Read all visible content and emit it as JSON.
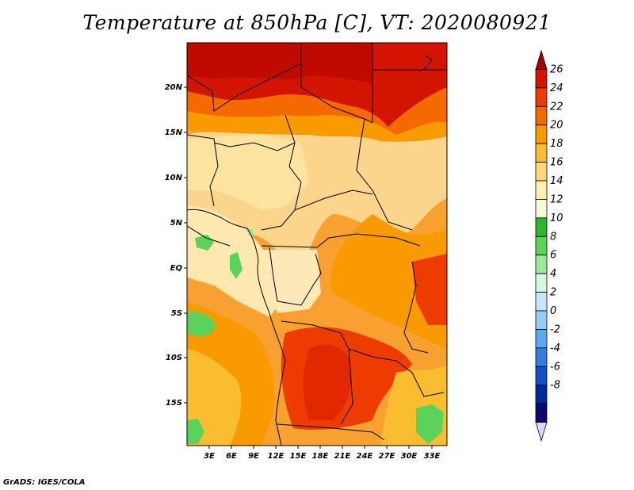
{
  "title": "Temperature at 850hPa [C], VT: 2020080921",
  "footer": "GrADS: IGES/COLA",
  "map": {
    "lat_labels": [
      "20N",
      "15N",
      "10N",
      "5N",
      "EQ",
      "5S",
      "10S",
      "15S"
    ],
    "lon_labels": [
      "3E",
      "6E",
      "9E",
      "12E",
      "15E",
      "18E",
      "21E",
      "24E",
      "27E",
      "30E",
      "33E"
    ],
    "lat_range": [
      -20,
      24.5
    ],
    "lon_range": [
      0,
      35
    ]
  },
  "colorbar": {
    "labels": [
      "26",
      "24",
      "22",
      "20",
      "18",
      "16",
      "14",
      "12",
      "10",
      "8",
      "6",
      "4",
      "2",
      "0",
      "-2",
      "-4",
      "-6",
      "-8"
    ],
    "colors": [
      "#a50000",
      "#d21400",
      "#ee3c00",
      "#f46a00",
      "#f89a00",
      "#fbbd30",
      "#fdd77e",
      "#fdf0b0",
      "#f3fbd8",
      "#2eb62e",
      "#5bd35b",
      "#9ae89a",
      "#daf6e0",
      "#c7e8fb",
      "#96cdf5",
      "#5ea8ec",
      "#2f7fe0",
      "#1150c8",
      "#002a9c",
      "#0a0a6e",
      "#d8d8f2"
    ]
  }
}
